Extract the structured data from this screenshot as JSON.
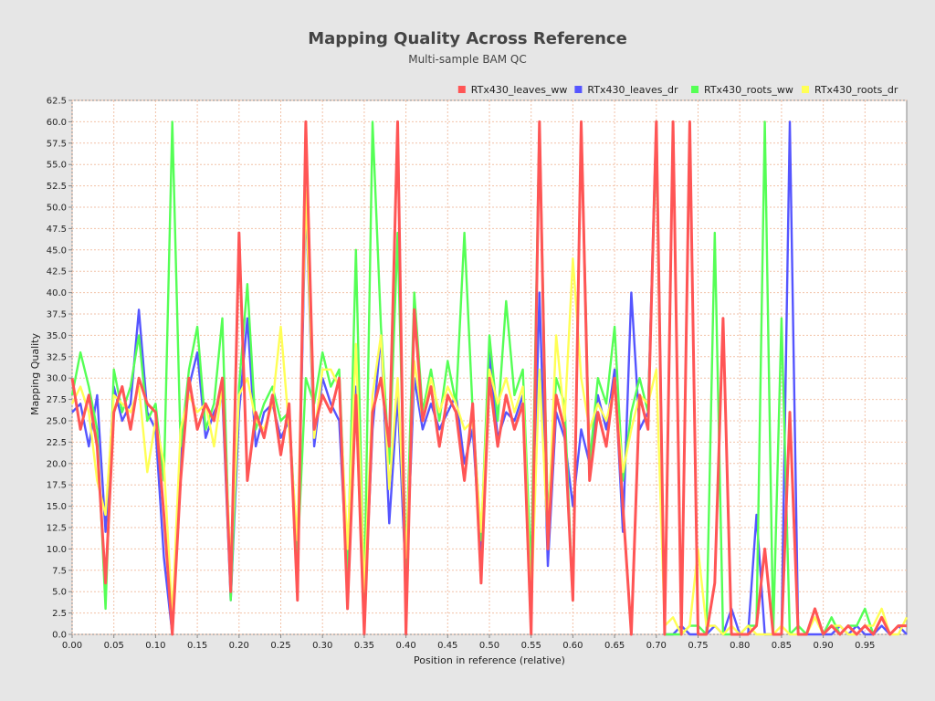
{
  "chart_data": {
    "type": "line",
    "title": "Mapping Quality Across Reference",
    "subtitle": "Multi-sample BAM QC",
    "xlabel": "Position in reference (relative)",
    "ylabel": "Mapping Quality",
    "xlim": [
      0.0,
      1.0
    ],
    "ylim": [
      0.0,
      62.5
    ],
    "xticks": [
      "0.00",
      "0.05",
      "0.10",
      "0.15",
      "0.20",
      "0.25",
      "0.30",
      "0.35",
      "0.40",
      "0.45",
      "0.50",
      "0.55",
      "0.60",
      "0.65",
      "0.70",
      "0.75",
      "0.80",
      "0.85",
      "0.90",
      "0.95"
    ],
    "yticks": [
      "0.0",
      "2.5",
      "5.0",
      "7.5",
      "10.0",
      "12.5",
      "15.0",
      "17.5",
      "20.0",
      "22.5",
      "25.0",
      "27.5",
      "30.0",
      "32.5",
      "35.0",
      "37.5",
      "40.0",
      "42.5",
      "45.0",
      "47.5",
      "50.0",
      "52.5",
      "55.0",
      "57.5",
      "60.0",
      "62.5"
    ],
    "grid": true,
    "legend_position": "top-right",
    "x": [
      0.0,
      0.01,
      0.02,
      0.03,
      0.04,
      0.05,
      0.06,
      0.07,
      0.08,
      0.09,
      0.1,
      0.11,
      0.12,
      0.13,
      0.14,
      0.15,
      0.16,
      0.17,
      0.18,
      0.19,
      0.2,
      0.21,
      0.22,
      0.23,
      0.24,
      0.25,
      0.26,
      0.27,
      0.28,
      0.29,
      0.3,
      0.31,
      0.32,
      0.33,
      0.34,
      0.35,
      0.36,
      0.37,
      0.38,
      0.39,
      0.4,
      0.41,
      0.42,
      0.43,
      0.44,
      0.45,
      0.46,
      0.47,
      0.48,
      0.49,
      0.5,
      0.51,
      0.52,
      0.53,
      0.54,
      0.55,
      0.56,
      0.57,
      0.58,
      0.59,
      0.6,
      0.61,
      0.62,
      0.63,
      0.64,
      0.65,
      0.66,
      0.67,
      0.68,
      0.69,
      0.7,
      0.71,
      0.72,
      0.73,
      0.74,
      0.75,
      0.76,
      0.77,
      0.78,
      0.79,
      0.8,
      0.81,
      0.82,
      0.83,
      0.84,
      0.85,
      0.86,
      0.87,
      0.88,
      0.89,
      0.9,
      0.91,
      0.92,
      0.93,
      0.94,
      0.95,
      0.96,
      0.97,
      0.98,
      0.99,
      1.0
    ],
    "series": [
      {
        "name": "RTx430_leaves_ww",
        "color": "#ff5555",
        "values": [
          30,
          24,
          28,
          22,
          6,
          26,
          29,
          24,
          30,
          27,
          26,
          14,
          0,
          18,
          30,
          24,
          27,
          25,
          30,
          5,
          47,
          18,
          26,
          23,
          28,
          21,
          27,
          4,
          60,
          24,
          28,
          26,
          30,
          3,
          28,
          0,
          26,
          30,
          22,
          60,
          0,
          38,
          25,
          29,
          22,
          28,
          26,
          18,
          27,
          6,
          30,
          22,
          28,
          24,
          27,
          0,
          60,
          10,
          28,
          24,
          4,
          60,
          18,
          26,
          22,
          30,
          15,
          0,
          28,
          24,
          60,
          0,
          60,
          0,
          60,
          0,
          0,
          6,
          37,
          0,
          0,
          0,
          1,
          10,
          0,
          0,
          26,
          0,
          0,
          3,
          0,
          1,
          0,
          1,
          0,
          1,
          0,
          2,
          0,
          1,
          1
        ]
      },
      {
        "name": "RTx430_leaves_dr",
        "color": "#5555ff",
        "values": [
          26,
          27,
          22,
          28,
          12,
          29,
          25,
          27,
          38,
          26,
          24,
          9,
          0,
          21,
          29,
          33,
          23,
          26,
          28,
          4,
          26,
          37,
          22,
          26,
          27,
          23,
          25,
          8,
          51,
          22,
          30,
          27,
          25,
          6,
          29,
          2,
          24,
          35,
          13,
          28,
          6,
          30,
          24,
          27,
          24,
          26,
          28,
          20,
          24,
          9,
          33,
          23,
          26,
          25,
          28,
          4,
          40,
          8,
          26,
          23,
          15,
          24,
          20,
          28,
          24,
          31,
          12,
          40,
          24,
          26,
          60,
          0,
          0,
          1,
          0,
          0,
          0,
          1,
          0,
          3,
          0,
          0,
          14,
          0,
          0,
          0,
          60,
          0,
          0,
          0,
          0,
          0,
          1,
          0,
          1,
          0,
          0,
          1,
          0,
          1,
          0
        ]
      },
      {
        "name": "RTx430_roots_ww",
        "color": "#55ff55",
        "values": [
          28,
          33,
          29,
          24,
          3,
          31,
          26,
          29,
          35,
          25,
          27,
          18,
          60,
          22,
          31,
          36,
          24,
          27,
          37,
          4,
          29,
          41,
          24,
          27,
          29,
          25,
          26,
          9,
          30,
          27,
          33,
          29,
          31,
          7,
          45,
          4,
          60,
          36,
          20,
          47,
          8,
          40,
          26,
          31,
          25,
          32,
          27,
          47,
          26,
          11,
          35,
          25,
          39,
          28,
          31,
          7,
          60,
          13,
          30,
          27,
          4,
          60,
          20,
          30,
          27,
          36,
          18,
          26,
          30,
          26,
          58,
          0,
          0,
          0,
          1,
          1,
          0,
          47,
          0,
          0,
          0,
          1,
          1,
          60,
          0,
          37,
          0,
          1,
          0,
          3,
          0,
          2,
          0,
          1,
          1,
          3,
          0,
          2,
          0,
          1,
          1
        ]
      },
      {
        "name": "RTx430_roots_dr",
        "color": "#ffff55",
        "values": [
          27,
          29,
          26,
          18,
          14,
          28,
          27,
          26,
          29,
          19,
          25,
          20,
          2,
          24,
          28,
          26,
          27,
          22,
          29,
          8,
          28,
          30,
          25,
          24,
          27,
          36,
          24,
          11,
          52,
          23,
          31,
          31,
          29,
          10,
          34,
          5,
          28,
          35,
          17,
          30,
          9,
          32,
          25,
          30,
          26,
          29,
          27,
          24,
          25,
          12,
          31,
          27,
          30,
          26,
          29,
          3,
          31,
          11,
          35,
          25,
          44,
          30,
          24,
          27,
          25,
          29,
          19,
          24,
          28,
          27,
          31,
          1,
          2,
          0,
          1,
          10,
          1,
          1,
          0,
          1,
          0,
          1,
          0,
          0,
          0,
          1,
          0,
          0,
          0,
          2,
          0,
          1,
          1,
          0,
          0,
          1,
          1,
          3,
          0,
          0,
          2
        ]
      }
    ]
  }
}
